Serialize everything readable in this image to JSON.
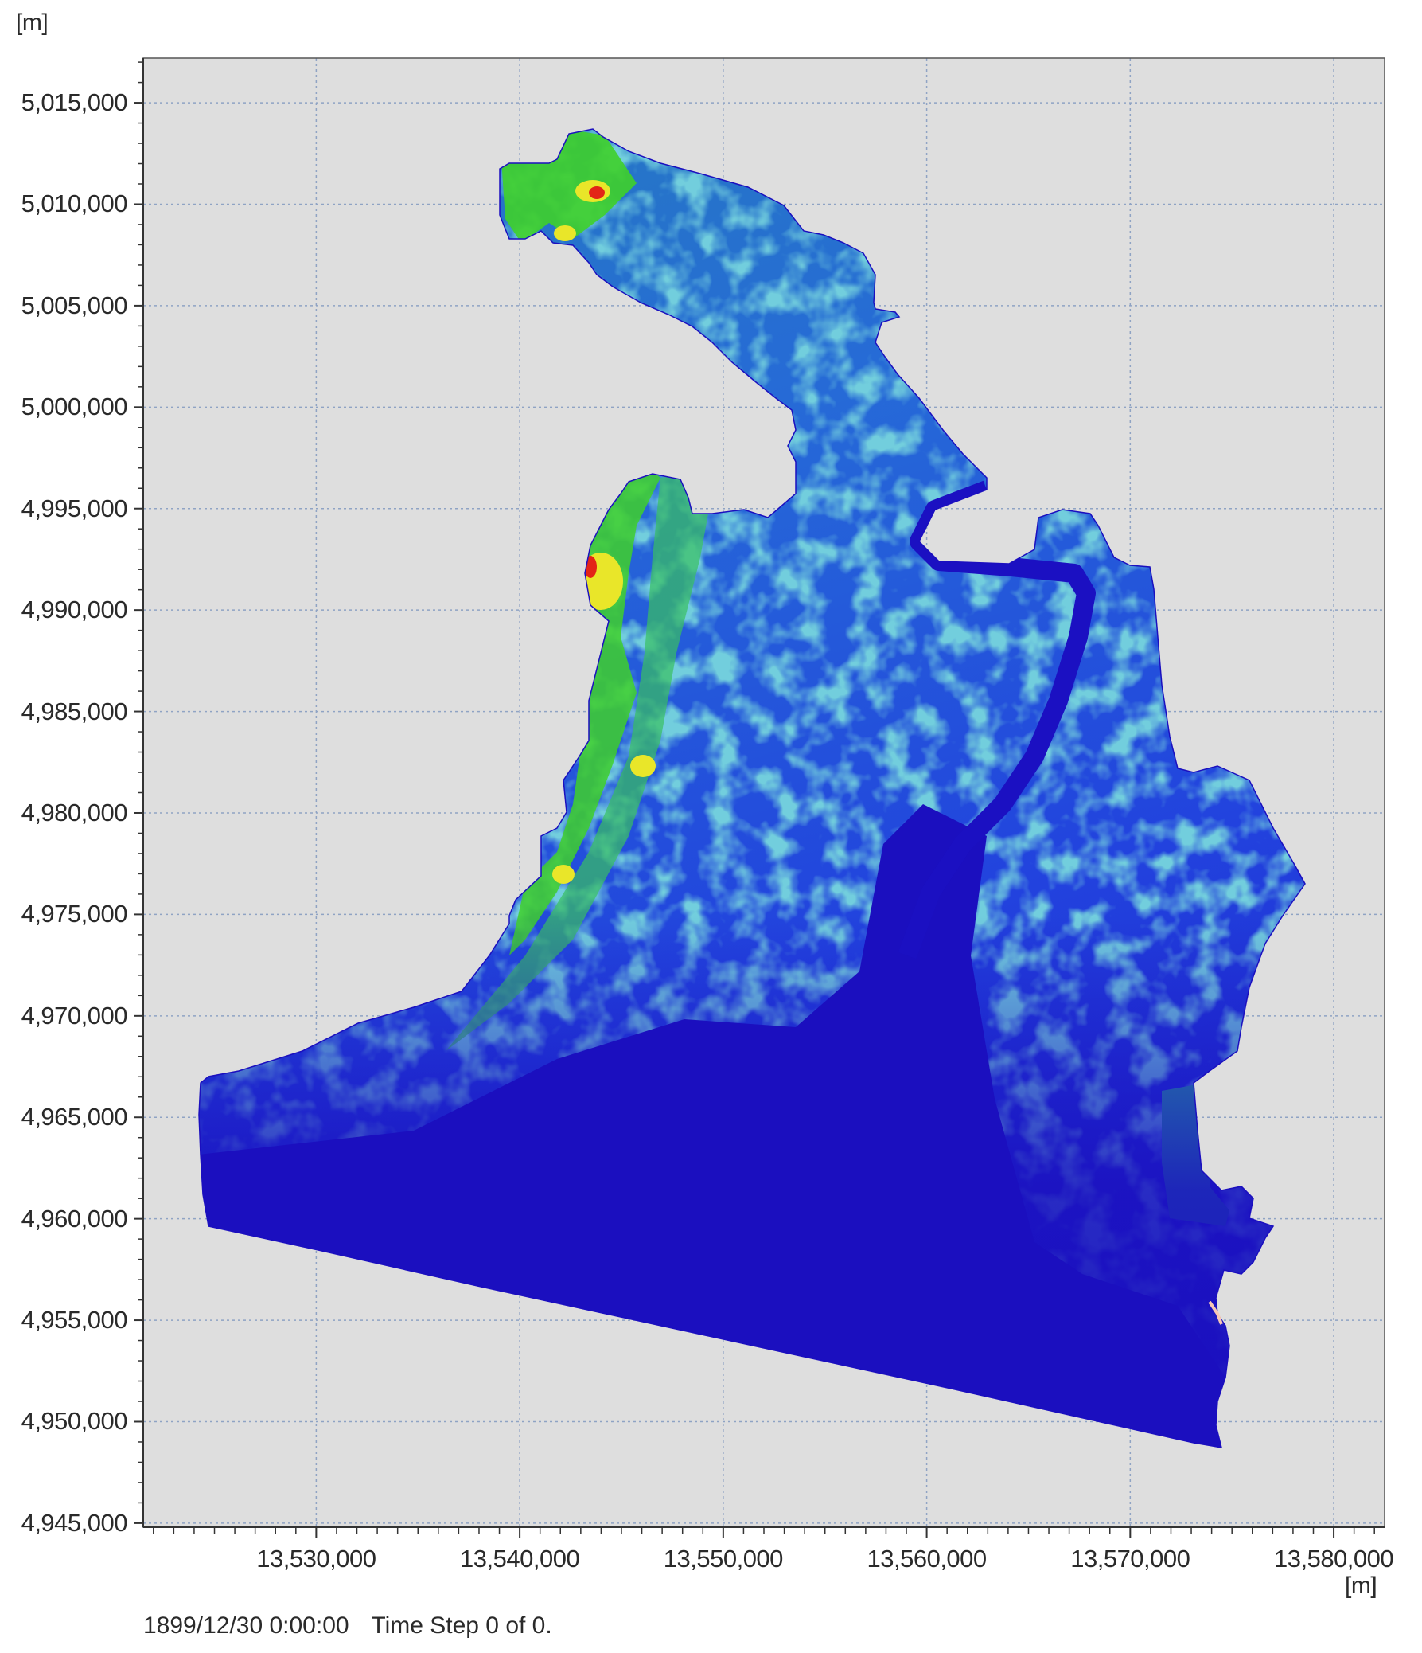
{
  "y_unit": "[m]",
  "x_unit": "[m]",
  "y_axis": {
    "ticks": [
      "5,015,000",
      "5,010,000",
      "5,005,000",
      "5,000,000",
      "4,995,000",
      "4,990,000",
      "4,985,000",
      "4,980,000",
      "4,975,000",
      "4,970,000",
      "4,965,000",
      "4,960,000",
      "4,955,000",
      "4,950,000",
      "4,945,000"
    ],
    "values": [
      5015000,
      5010000,
      5005000,
      5000000,
      4995000,
      4990000,
      4985000,
      4980000,
      4975000,
      4970000,
      4965000,
      4960000,
      4955000,
      4950000,
      4945000
    ],
    "range": [
      4944800,
      5017200
    ]
  },
  "x_axis": {
    "ticks": [
      "13,530,000",
      "13,540,000",
      "13,550,000",
      "13,560,000",
      "13,570,000",
      "13,580,000"
    ],
    "values": [
      13530000,
      13540000,
      13550000,
      13560000,
      13570000,
      13580000
    ],
    "range": [
      13521500,
      13582500
    ]
  },
  "grid": true,
  "status": {
    "datetime": "1899/12/30 0:00:00",
    "timestep": "Time Step 0 of 0."
  },
  "colors": {
    "background": "#dedede",
    "grid": "#8fa3c4",
    "deep_blue": "#1b0fbf",
    "blue": "#1f3ce0",
    "teal": "#2bb3a0",
    "green": "#3fd02a",
    "yellow": "#e9e629",
    "red": "#e32417"
  }
}
